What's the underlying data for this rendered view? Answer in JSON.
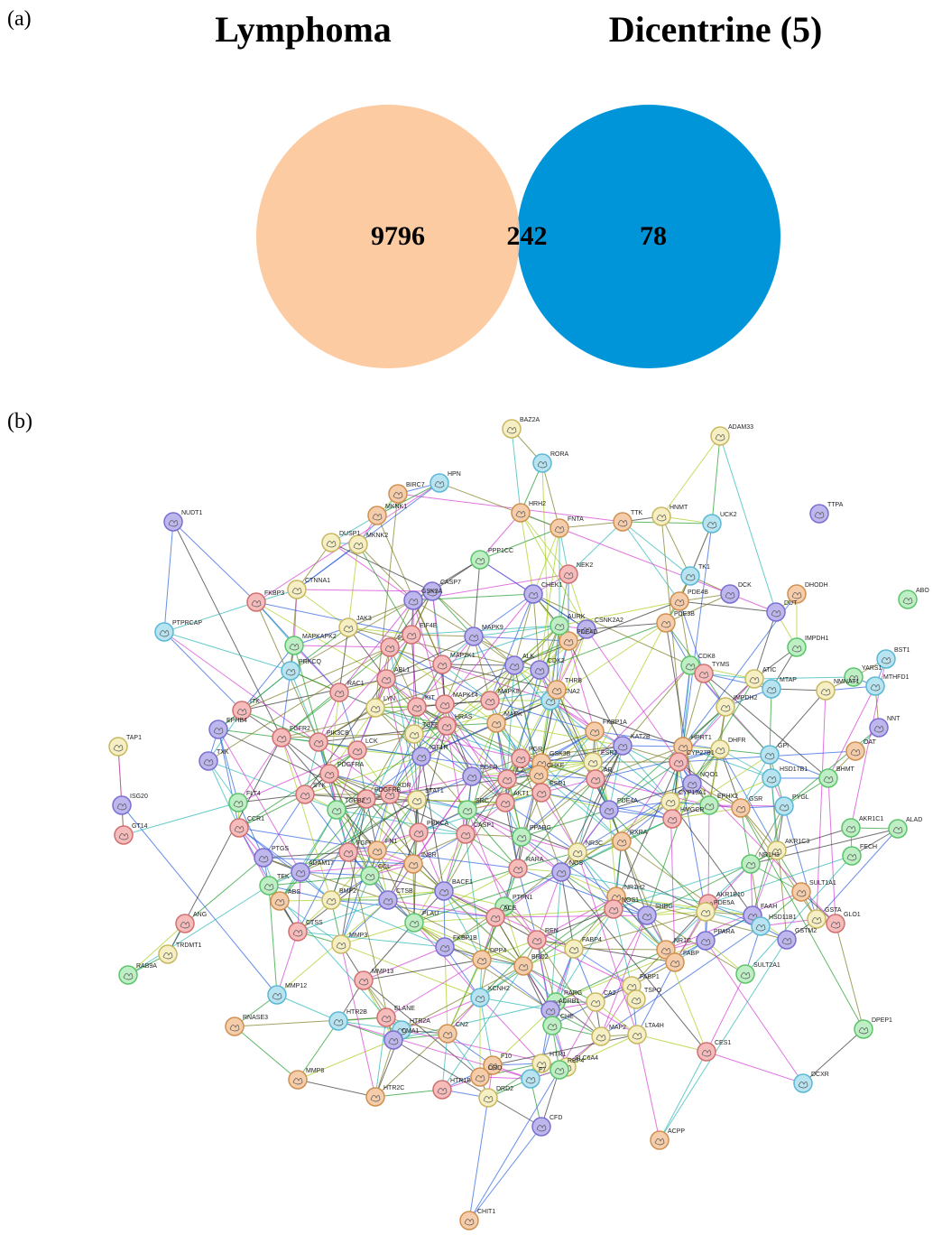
{
  "panel_a": {
    "label": "(a)",
    "venn": {
      "sets": [
        "Lymphoma",
        "Dicentrine (5)"
      ],
      "left_only": 9796,
      "intersection": 242,
      "right_only": 78
    }
  },
  "panel_b": {
    "label": "(b)",
    "nodes": [
      "BAZ2A",
      "ADAM33",
      "RORA",
      "HPN",
      "TTPA",
      "NUDT1",
      "BIRC7",
      "HNMT",
      "UCK2",
      "TTK",
      "FNTA",
      "HRH2",
      "MKNK1",
      "MKNK2",
      "DUSP1",
      "FKBP3",
      "CTNNA1",
      "ABO",
      "DHODH",
      "PTPRCAP",
      "CASP7",
      "GSK3A",
      "PPP1CC",
      "NEK2",
      "CHEK1",
      "TK1",
      "DCK",
      "DUT",
      "JAK3",
      "PDPK1",
      "EIF4E",
      "MAPK9",
      "CSNK2A2",
      "PDE4D",
      "PDE4B",
      "PDE3B",
      "IMPDH1",
      "BST1",
      "MAPKAPK2",
      "PRKCQ",
      "ABL1",
      "MAP2K1",
      "AURK",
      "ALK",
      "CDK2",
      "CDK8",
      "TYMS",
      "ATIC",
      "YARS1",
      "MTHFD1",
      "NMNAT1",
      "MTAP",
      "ITK",
      "EPHB4",
      "RAC1",
      "LYN",
      "KIT",
      "MAPK14",
      "MAPK8",
      "CCNA2",
      "THRB",
      "IMPDH2",
      "NNT",
      "TAP1",
      "FGFR2",
      "PIK3CB",
      "TGFBR1",
      "HRAS",
      "MAPK",
      "FKBP1A",
      "KAT2B",
      "HPRT1",
      "DHFR",
      "OAT",
      "TXK",
      "LCK",
      "IGF1R",
      "PGR",
      "GSK3B",
      "ESR2",
      "CYP27B1",
      "GPI",
      "PDGFRA",
      "CHKE",
      "BHMT",
      "HSD17B1",
      "FLT4",
      "KDR",
      "EGFR",
      "IL2",
      "ESR1",
      "AR",
      "NQO1",
      "SYK",
      "PDGFRB",
      "STAT1",
      "SRC",
      "AKT1",
      "CYP19A1",
      "EPHX2",
      "PYGL",
      "ISG20",
      "GT14",
      "CCR1",
      "TGFB2",
      "PRKCA",
      "CASP1",
      "PDE4A",
      "GSR",
      "HMGCR",
      "ALAD",
      "AKR1C1",
      "RXRA",
      "FECH",
      "PTGS",
      "FGFR1",
      "FN1",
      "PPARG",
      "NR3C",
      "NOS",
      "RARA",
      "AKR1C3",
      "TEK",
      "ADAM17",
      "INSR",
      "NR1H3",
      "CCL",
      "ABS",
      "BMP2",
      "CTSB",
      "BACE1",
      "PTPN1",
      "NR1H2",
      "NOS1",
      "SULT1A1",
      "AKR1B10",
      "ANG",
      "CTSS",
      "PLAU",
      "ACE",
      "SHBG",
      "FAAH",
      "PDE5A",
      "HSD11B1",
      "GSTA",
      "GLO1",
      "TRDMT1",
      "MMP3",
      "FKBP1B",
      "REN",
      "PPARA",
      "GSTM2",
      "NR1C",
      "FABP4",
      "FABP",
      "RAB9A",
      "MMP13",
      "DPP4",
      "BRD2",
      "SULT2A1",
      "MMP12",
      "FABP1",
      "TSPO",
      "RARG",
      "ADRB1",
      "KCNH2",
      "CA2",
      "DPEP1",
      "RNASE3",
      "HTR2B",
      "ELANE",
      "HTR2A",
      "CMA1",
      "CHE",
      "MAP2",
      "LTA4H",
      "CES1",
      "CN2",
      "SLC6A4",
      "RBP4",
      "HTR1",
      "F10",
      "MMP8",
      "HTR1B",
      "DRD",
      "F7",
      "DCXR",
      "HTR2C",
      "DRD2",
      "CFD",
      "ACPP",
      "CHIT1"
    ]
  }
}
